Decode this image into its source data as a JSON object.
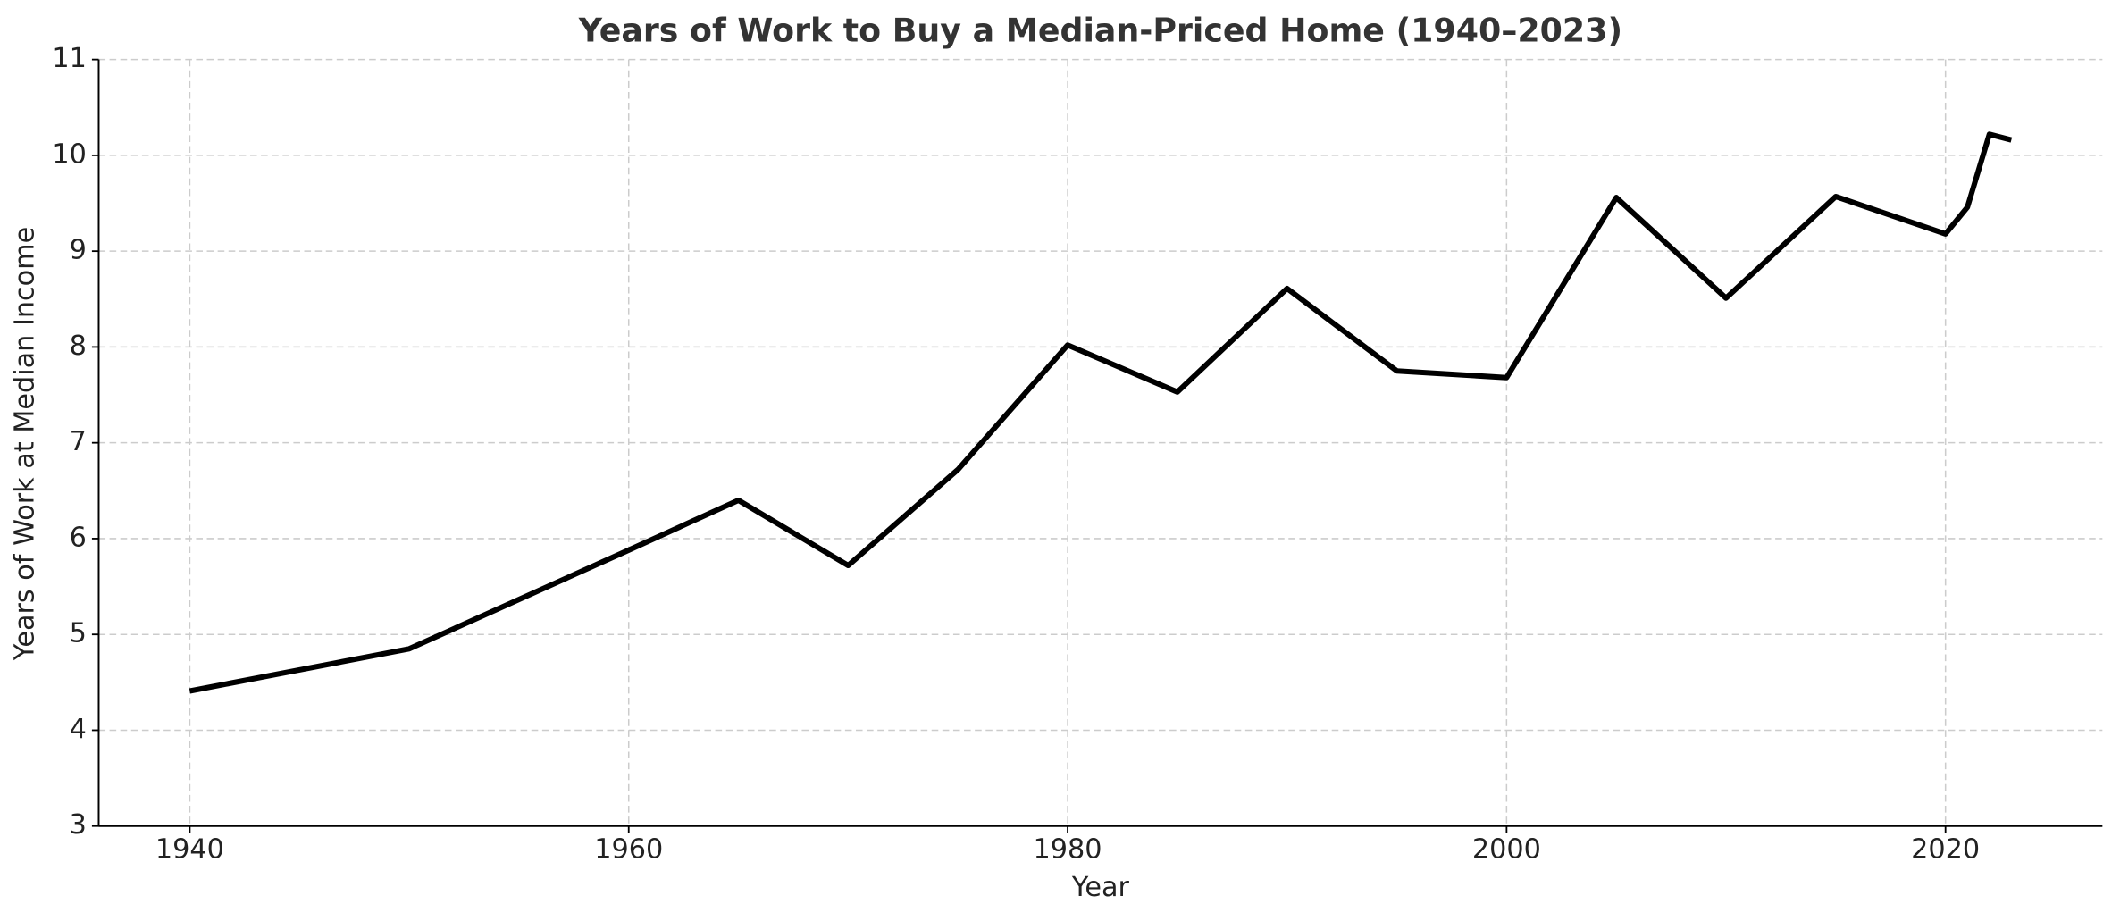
{
  "chart_data": {
    "type": "line",
    "title": "Years of Work to Buy a Median-Priced Home (1940–2023)",
    "x_label": "Year",
    "y_label": "Years of Work at Median Income",
    "x": [
      1940,
      1950,
      1960,
      1965,
      1970,
      1975,
      1980,
      1985,
      1990,
      1995,
      2000,
      2005,
      2010,
      2015,
      2020,
      2021,
      2022,
      2023
    ],
    "series": [
      {
        "name": "Years of Work",
        "color": "#000000",
        "values": [
          4.41,
          4.85,
          5.88,
          6.4,
          5.72,
          6.72,
          8.02,
          7.53,
          8.61,
          7.75,
          7.68,
          9.56,
          8.51,
          9.57,
          9.18,
          9.46,
          10.22,
          10.16
        ]
      }
    ],
    "xlim": [
      1935.85,
      2027.15
    ],
    "xticks": [
      1940,
      1960,
      1980,
      2000,
      2020
    ],
    "ylim": [
      3,
      11
    ],
    "yticks": [
      3,
      4,
      5,
      6,
      7,
      8,
      9,
      10,
      11
    ],
    "grid": true
  }
}
